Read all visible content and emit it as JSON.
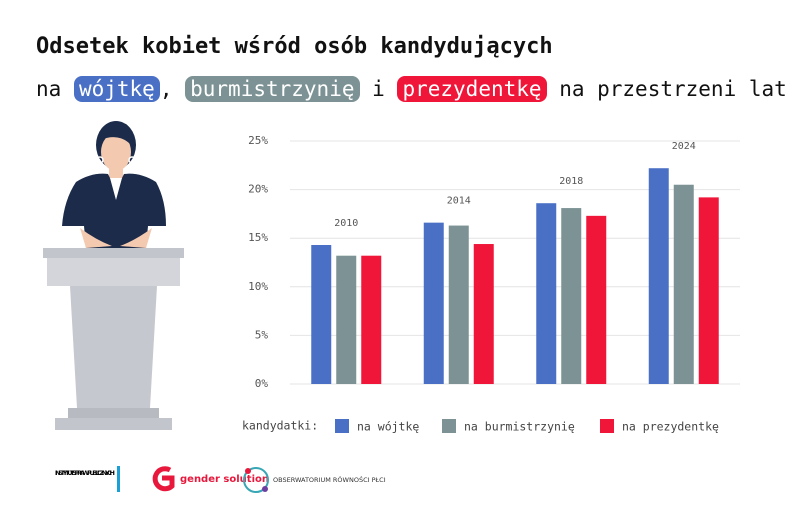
{
  "chart_data": {
    "type": "bar",
    "title": "Odsetek kobiet wśród osób kandydujących",
    "subtitle_parts": [
      "na",
      "wójtkę",
      ",",
      "burmistrzynię",
      "i",
      "prezydentkę",
      "na przestrzeni lat"
    ],
    "categories": [
      "2010",
      "2014",
      "2018",
      "2024"
    ],
    "series": [
      {
        "name": "na wójtkę",
        "color": "#4a70c6",
        "values": [
          14.3,
          16.6,
          18.6,
          22.2
        ]
      },
      {
        "name": "na burmistrzynię",
        "color": "#7c9294",
        "values": [
          13.2,
          16.3,
          18.1,
          20.5
        ]
      },
      {
        "name": "na prezydentkę",
        "color": "#f0163a",
        "values": [
          13.2,
          14.4,
          17.3,
          19.2
        ]
      }
    ],
    "ylim": [
      0,
      25
    ],
    "yticks": [
      {
        "value": 0,
        "label": "0%"
      },
      {
        "value": 5,
        "label": "5%"
      },
      {
        "value": 10,
        "label": "10%"
      },
      {
        "value": 15,
        "label": "15%"
      },
      {
        "value": 20,
        "label": "20%"
      },
      {
        "value": 25,
        "label": "25%"
      }
    ],
    "grid": true,
    "legend_title": "kandydatki:",
    "logos": [
      "INSTYTUT SPRAW PUBLICZNYCH",
      "gender solution",
      "OBSERWATORIUM RÓWNOŚCI PŁCI"
    ]
  }
}
